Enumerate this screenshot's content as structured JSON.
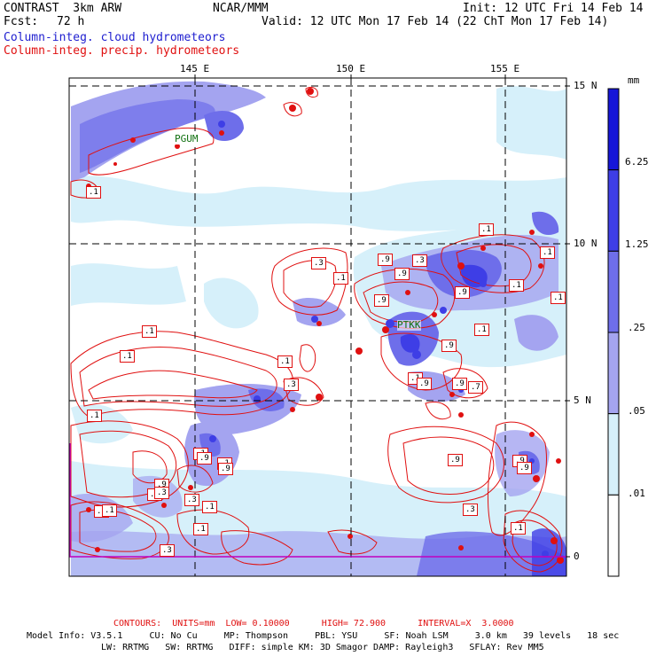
{
  "header": {
    "title": "CONTRAST  3km ARW",
    "org": "NCAR/MMM",
    "init": "Init: 12 UTC Fri 14 Feb 14",
    "fcst_label": "Fcst:",
    "fcst_value": "72 h",
    "valid": "Valid: 12 UTC Mon 17 Feb 14 (22 ChT Mon 17 Feb 14)",
    "field1": "Column-integ. cloud hydrometeors",
    "field2": "Column-integ. precip. hydrometeors"
  },
  "map": {
    "lon_labels": [
      "145 E",
      "150 E",
      "155 E"
    ],
    "lat_labels": [
      "15 N",
      "10 N",
      "5 N",
      "0"
    ],
    "stations": [
      "PGUM",
      "PTKK"
    ],
    "contour_labels": [
      ".1",
      ".1",
      ".3",
      ".1",
      ".3",
      ".1",
      ".9",
      ".1",
      ".3",
      ".1",
      ".9",
      ".1",
      ".9",
      ".1",
      ".1",
      ".9",
      ".9",
      ".9",
      ".9",
      ".9",
      ".1",
      ".9",
      ".9",
      ".9",
      ".1",
      ".9",
      ".3",
      ".1",
      ".1",
      ".1",
      ".1",
      ".3",
      ".3",
      ".1",
      ".1",
      ".9",
      ".1",
      ".1",
      ".3",
      ".7",
      ".9"
    ]
  },
  "colorbar": {
    "unit": "mm",
    "labels": [
      "6.25",
      "1.25",
      ".25",
      ".05",
      ".01"
    ],
    "colors": [
      "#1616d8",
      "#3e3ee6",
      "#6e6eea",
      "#a4a4f0",
      "#d6f0fa",
      "#ffffff"
    ]
  },
  "footer": {
    "contours": "CONTOURS:  UNITS=mm  LOW= 0.10000      HIGH= 72.900      INTERVAL=X  3.0000",
    "model_line1": "Model Info: V3.5.1     CU: No Cu     MP: Thompson     PBL: YSU     SF: Noah LSM     3.0 km   39 levels   18 sec",
    "model_line2": "LW: RRTMG   SW: RRTMG   DIFF: simple KM: 3D Smagor DAMP: Rayleigh3   SFLAY: Rev MM5"
  }
}
